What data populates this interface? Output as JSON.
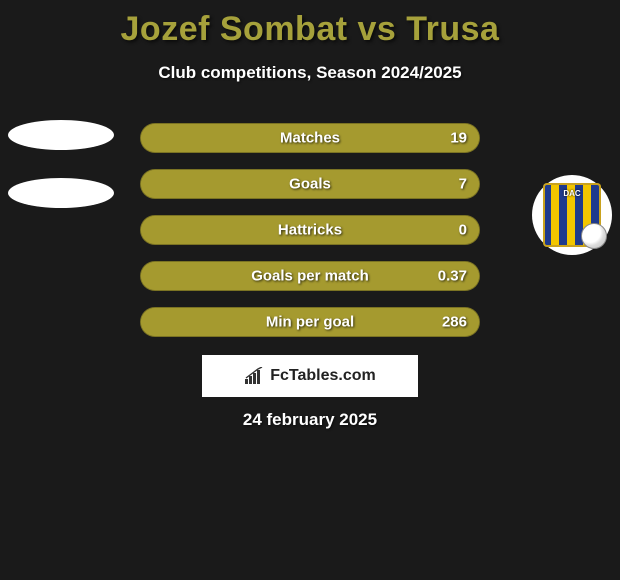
{
  "title": {
    "text": "Jozef Sombat vs Trusa",
    "color": "#a6a13b",
    "fontsize": 34
  },
  "subtitle": "Club competitions, Season 2024/2025",
  "date": "24 february 2025",
  "colors": {
    "bar": "#a59a2f",
    "barFill": "#a59a2f",
    "background": "#1a1a1a",
    "text": "#ffffff"
  },
  "bars": [
    {
      "label": "Matches",
      "value": "19",
      "fill": 1.0
    },
    {
      "label": "Goals",
      "value": "7",
      "fill": 1.0
    },
    {
      "label": "Hattricks",
      "value": "0",
      "fill": 1.0
    },
    {
      "label": "Goals per match",
      "value": "0.37",
      "fill": 1.0
    },
    {
      "label": "Min per goal",
      "value": "286",
      "fill": 1.0
    }
  ],
  "watermark": "FcTables.com",
  "crest": {
    "text": "DAC"
  }
}
